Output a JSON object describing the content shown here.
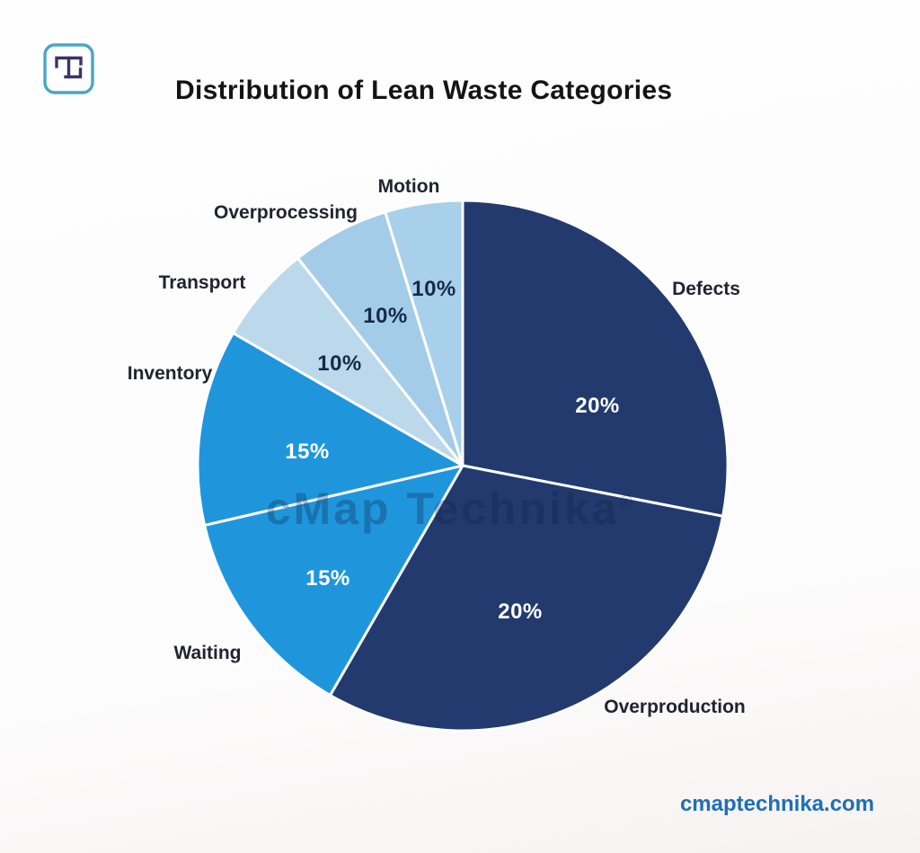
{
  "brand": {
    "logo_name": "cMap Technika logo mark",
    "logo_border_color": "#4aa5c8",
    "logo_glyph_color": "#3a3566"
  },
  "title": "Distribution of Lean Waste Categories",
  "watermark": {
    "text": "cMap Technika",
    "reg": "®"
  },
  "footer": {
    "website": "cmaptechnika.com",
    "color": "#1d6fb8"
  },
  "chart_data": {
    "type": "pie",
    "title": "Distribution of Lean Waste Categories",
    "unit": "%",
    "total": 100,
    "legend": "none; categories are labeled directly outside the slices, percentages inside the slices",
    "segments": [
      {
        "label": "Defects",
        "value": 20,
        "display": "20%",
        "color": "#223a6d",
        "value_label_color": "#ffffff"
      },
      {
        "label": "Overproduction",
        "value": 20,
        "display": "20%",
        "color": "#223a6d",
        "value_label_color": "#ffffff"
      },
      {
        "label": "Waiting",
        "value": 15,
        "display": "15%",
        "color": "#1f96dc",
        "value_label_color": "#ffffff"
      },
      {
        "label": "Inventory",
        "value": 15,
        "display": "15%",
        "color": "#1f96dc",
        "value_label_color": "#ffffff"
      },
      {
        "label": "Transport",
        "value": 10,
        "display": "10%",
        "color": "#bcd9ec",
        "value_label_color": "#17294c"
      },
      {
        "label": "Overprocessing",
        "value": 10,
        "display": "10%",
        "color": "#a3cce8",
        "value_label_color": "#17294c"
      },
      {
        "label": "Motion",
        "value": 10,
        "display": "10%",
        "color": "#a9d0ea",
        "value_label_color": "#17294c"
      }
    ],
    "layout_hints": {
      "start_angle": "12 o'clock, clockwise",
      "rendered_slice_angles_deg": [
        [
          0,
          101
        ],
        [
          101,
          210
        ],
        [
          210,
          257
        ],
        [
          257,
          300
        ],
        [
          300,
          321.5
        ],
        [
          321.5,
          343
        ],
        [
          343,
          360
        ]
      ],
      "slice_divider": "white 3px strokes between slices",
      "note": "slice angles drawn in the source graphic do not geometrically match the labeled percentages"
    }
  }
}
